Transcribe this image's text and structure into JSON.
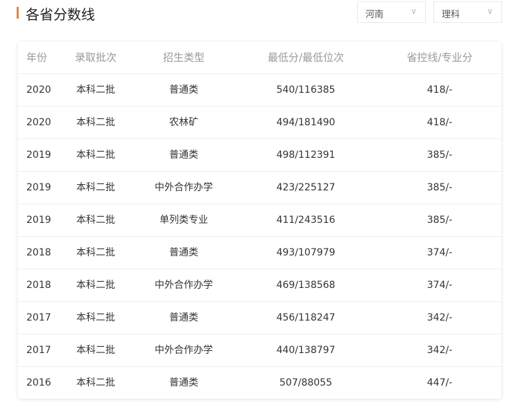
{
  "title": "各省分数线",
  "filters": {
    "province": "河南",
    "subject": "理科"
  },
  "table": {
    "headers": [
      "年份",
      "录取批次",
      "招生类型",
      "最低分/最低位次",
      "省控线/专业分"
    ],
    "rows": [
      [
        "2020",
        "本科二批",
        "普通类",
        "540/116385",
        "418/-"
      ],
      [
        "2020",
        "本科二批",
        "农林矿",
        "494/181490",
        "418/-"
      ],
      [
        "2019",
        "本科二批",
        "普通类",
        "498/112391",
        "385/-"
      ],
      [
        "2019",
        "本科二批",
        "中外合作办学",
        "423/225127",
        "385/-"
      ],
      [
        "2019",
        "本科二批",
        "单列类专业",
        "411/243516",
        "385/-"
      ],
      [
        "2018",
        "本科二批",
        "普通类",
        "493/107979",
        "374/-"
      ],
      [
        "2018",
        "本科二批",
        "中外合作办学",
        "469/138568",
        "374/-"
      ],
      [
        "2017",
        "本科二批",
        "普通类",
        "456/118247",
        "342/-"
      ],
      [
        "2017",
        "本科二批",
        "中外合作办学",
        "440/138797",
        "342/-"
      ],
      [
        "2016",
        "本科二批",
        "普通类",
        "507/88055",
        "447/-"
      ]
    ]
  }
}
